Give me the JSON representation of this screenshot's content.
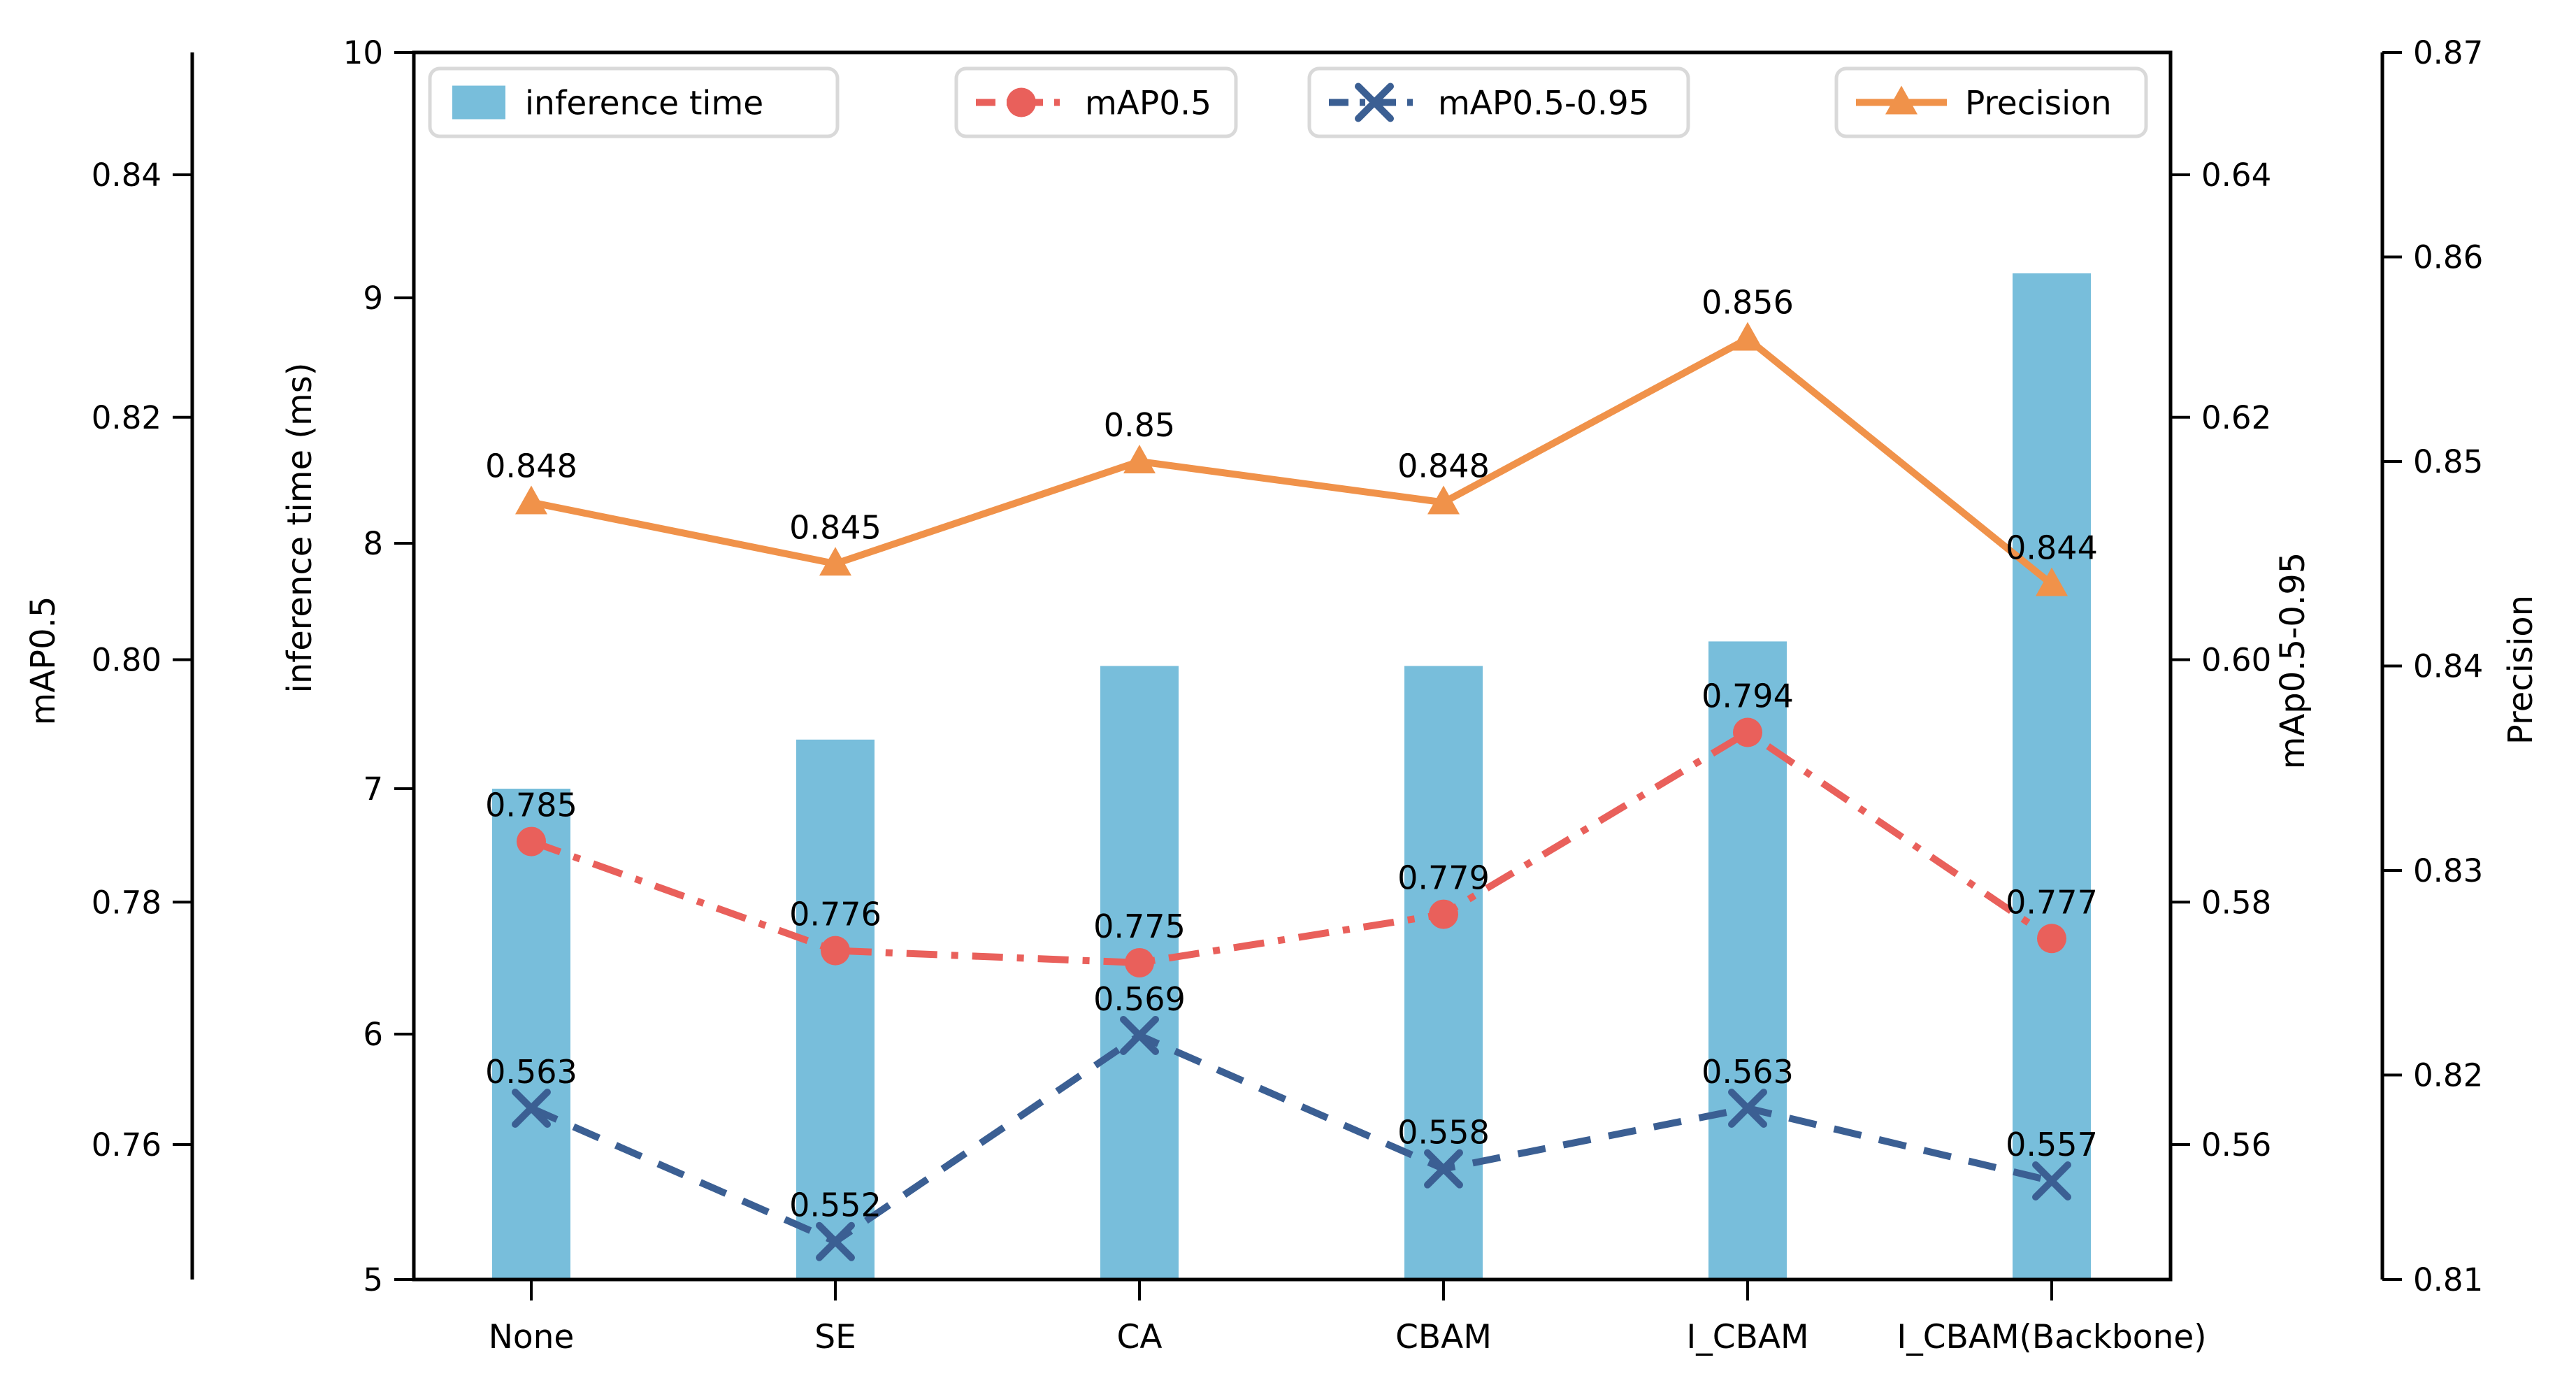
{
  "figure": {
    "background": "#ffffff",
    "text_color": "#000000"
  },
  "chart_data": {
    "type": "combo_bar_line",
    "title": "",
    "grid": false,
    "categories": [
      "None",
      "SE",
      "CA",
      "CBAM",
      "I_CBAM",
      "I_CBAM(Backbone)"
    ],
    "series": [
      {
        "name": "inference time",
        "type": "bar",
        "axis": "inference_time",
        "color": "#78bedb",
        "values": [
          7.0,
          7.2,
          7.5,
          7.5,
          7.6,
          9.1
        ]
      },
      {
        "name": "mAP0.5",
        "type": "line",
        "axis": "map05",
        "color": "#e9605b",
        "linestyle": "dashdot",
        "marker": "circle",
        "values": [
          0.785,
          0.776,
          0.775,
          0.779,
          0.794,
          0.777
        ],
        "data_labels": [
          "0.785",
          "0.776",
          "0.775",
          "0.779",
          "0.794",
          "0.777"
        ]
      },
      {
        "name": "mAP0.5-0.95",
        "type": "line",
        "axis": "map05_095",
        "color": "#3b5f93",
        "linestyle": "dashed",
        "marker": "x",
        "values": [
          0.563,
          0.552,
          0.569,
          0.558,
          0.563,
          0.557
        ],
        "data_labels": [
          "0.563",
          "0.552",
          "0.569",
          "0.558",
          "0.563",
          "0.557"
        ]
      },
      {
        "name": "Precision",
        "type": "line",
        "axis": "precision",
        "color": "#f0924a",
        "linestyle": "solid",
        "marker": "triangle",
        "values": [
          0.848,
          0.845,
          0.85,
          0.848,
          0.856,
          0.844
        ],
        "data_labels": [
          "0.848",
          "0.845",
          "0.85",
          "0.848",
          "0.856",
          "0.844"
        ]
      }
    ],
    "axes": {
      "map05": {
        "title": "mAP0.5",
        "position": "left-outer",
        "tick_values": [
          0.76,
          0.78,
          0.8,
          0.82,
          0.84
        ],
        "tick_labels": [
          "0.76",
          "0.78",
          "0.80",
          "0.82",
          "0.84"
        ]
      },
      "inference_time": {
        "title": "inference time (ms)",
        "position": "left-inner",
        "range": [
          5,
          10
        ],
        "tick_values": [
          5,
          6,
          7,
          8,
          9,
          10
        ],
        "tick_labels": [
          "5",
          "6",
          "7",
          "8",
          "9",
          "10"
        ]
      },
      "map05_095": {
        "title": "mAp0.5-0.95",
        "position": "right-inner",
        "tick_values": [
          0.56,
          0.58,
          0.6,
          0.62,
          0.64
        ],
        "tick_labels": [
          "0.56",
          "0.58",
          "0.60",
          "0.62",
          "0.64"
        ]
      },
      "precision": {
        "title": "Precision",
        "position": "right-outer",
        "range": [
          0.81,
          0.87
        ],
        "tick_values": [
          0.81,
          0.82,
          0.83,
          0.84,
          0.85,
          0.86,
          0.87
        ],
        "tick_labels": [
          "0.81",
          "0.82",
          "0.83",
          "0.84",
          "0.85",
          "0.86",
          "0.87"
        ]
      }
    },
    "legend": {
      "position": "top",
      "items": [
        "inference time",
        "mAP0.5",
        "mAP0.5-0.95",
        "Precision"
      ]
    }
  }
}
